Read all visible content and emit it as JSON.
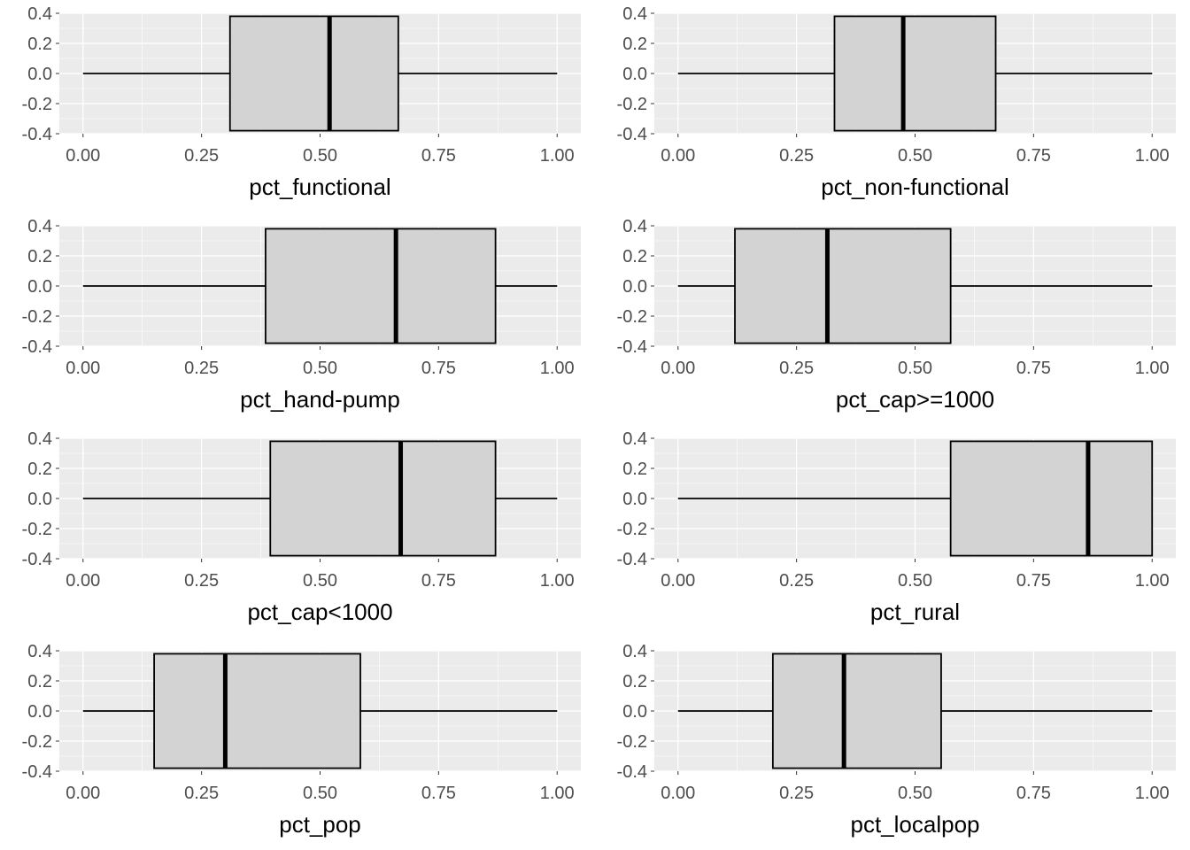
{
  "colors": {
    "panel_background": "#ebebeb",
    "grid_major": "#ffffff",
    "box_fill": "#d3d3d3",
    "box_stroke": "#000000",
    "tick_text": "#4d4d4d"
  },
  "chart_data": [
    {
      "type": "boxplot",
      "orientation": "horizontal",
      "xlabel": "pct_functional",
      "xlim": [
        -0.05,
        1.05
      ],
      "ylim": [
        -0.4,
        0.4
      ],
      "x_ticks": [
        "0.00",
        "0.25",
        "0.50",
        "0.75",
        "1.00"
      ],
      "y_ticks": [
        "0.4",
        "0.2",
        "0.0",
        "-0.2",
        "-0.4"
      ],
      "grid": true,
      "stats": {
        "min": 0.0,
        "q1": 0.31,
        "median": 0.52,
        "q3": 0.665,
        "max": 1.0
      }
    },
    {
      "type": "boxplot",
      "orientation": "horizontal",
      "xlabel": "pct_non-functional",
      "xlim": [
        -0.05,
        1.05
      ],
      "ylim": [
        -0.4,
        0.4
      ],
      "x_ticks": [
        "0.00",
        "0.25",
        "0.50",
        "0.75",
        "1.00"
      ],
      "y_ticks": [
        "0.4",
        "0.2",
        "0.0",
        "-0.2",
        "-0.4"
      ],
      "grid": true,
      "stats": {
        "min": 0.0,
        "q1": 0.33,
        "median": 0.475,
        "q3": 0.67,
        "max": 1.0
      }
    },
    {
      "type": "boxplot",
      "orientation": "horizontal",
      "xlabel": "pct_hand-pump",
      "xlim": [
        -0.05,
        1.05
      ],
      "ylim": [
        -0.4,
        0.4
      ],
      "x_ticks": [
        "0.00",
        "0.25",
        "0.50",
        "0.75",
        "1.00"
      ],
      "y_ticks": [
        "0.4",
        "0.2",
        "0.0",
        "-0.2",
        "-0.4"
      ],
      "grid": true,
      "stats": {
        "min": 0.0,
        "q1": 0.385,
        "median": 0.66,
        "q3": 0.87,
        "max": 1.0
      }
    },
    {
      "type": "boxplot",
      "orientation": "horizontal",
      "xlabel": "pct_cap>=1000",
      "xlim": [
        -0.05,
        1.05
      ],
      "ylim": [
        -0.4,
        0.4
      ],
      "x_ticks": [
        "0.00",
        "0.25",
        "0.50",
        "0.75",
        "1.00"
      ],
      "y_ticks": [
        "0.4",
        "0.2",
        "0.0",
        "-0.2",
        "-0.4"
      ],
      "grid": true,
      "stats": {
        "min": 0.0,
        "q1": 0.12,
        "median": 0.315,
        "q3": 0.575,
        "max": 1.0
      }
    },
    {
      "type": "boxplot",
      "orientation": "horizontal",
      "xlabel": "pct_cap<1000",
      "xlim": [
        -0.05,
        1.05
      ],
      "ylim": [
        -0.4,
        0.4
      ],
      "x_ticks": [
        "0.00",
        "0.25",
        "0.50",
        "0.75",
        "1.00"
      ],
      "y_ticks": [
        "0.4",
        "0.2",
        "0.0",
        "-0.2",
        "-0.4"
      ],
      "grid": true,
      "stats": {
        "min": 0.0,
        "q1": 0.395,
        "median": 0.67,
        "q3": 0.87,
        "max": 1.0
      }
    },
    {
      "type": "boxplot",
      "orientation": "horizontal",
      "xlabel": "pct_rural",
      "xlim": [
        -0.05,
        1.05
      ],
      "ylim": [
        -0.4,
        0.4
      ],
      "x_ticks": [
        "0.00",
        "0.25",
        "0.50",
        "0.75",
        "1.00"
      ],
      "y_ticks": [
        "0.4",
        "0.2",
        "0.0",
        "-0.2",
        "-0.4"
      ],
      "grid": true,
      "stats": {
        "min": 0.0,
        "q1": 0.575,
        "median": 0.865,
        "q3": 1.0,
        "max": 1.0
      }
    },
    {
      "type": "boxplot",
      "orientation": "horizontal",
      "xlabel": "pct_pop",
      "xlim": [
        -0.05,
        1.05
      ],
      "ylim": [
        -0.4,
        0.4
      ],
      "x_ticks": [
        "0.00",
        "0.25",
        "0.50",
        "0.75",
        "1.00"
      ],
      "y_ticks": [
        "0.4",
        "0.2",
        "0.0",
        "-0.2",
        "-0.4"
      ],
      "grid": true,
      "stats": {
        "min": 0.0,
        "q1": 0.15,
        "median": 0.3,
        "q3": 0.585,
        "max": 1.0
      }
    },
    {
      "type": "boxplot",
      "orientation": "horizontal",
      "xlabel": "pct_localpop",
      "xlim": [
        -0.05,
        1.05
      ],
      "ylim": [
        -0.4,
        0.4
      ],
      "x_ticks": [
        "0.00",
        "0.25",
        "0.50",
        "0.75",
        "1.00"
      ],
      "y_ticks": [
        "0.4",
        "0.2",
        "0.0",
        "-0.2",
        "-0.4"
      ],
      "grid": true,
      "stats": {
        "min": 0.0,
        "q1": 0.2,
        "median": 0.35,
        "q3": 0.555,
        "max": 1.0
      }
    }
  ]
}
